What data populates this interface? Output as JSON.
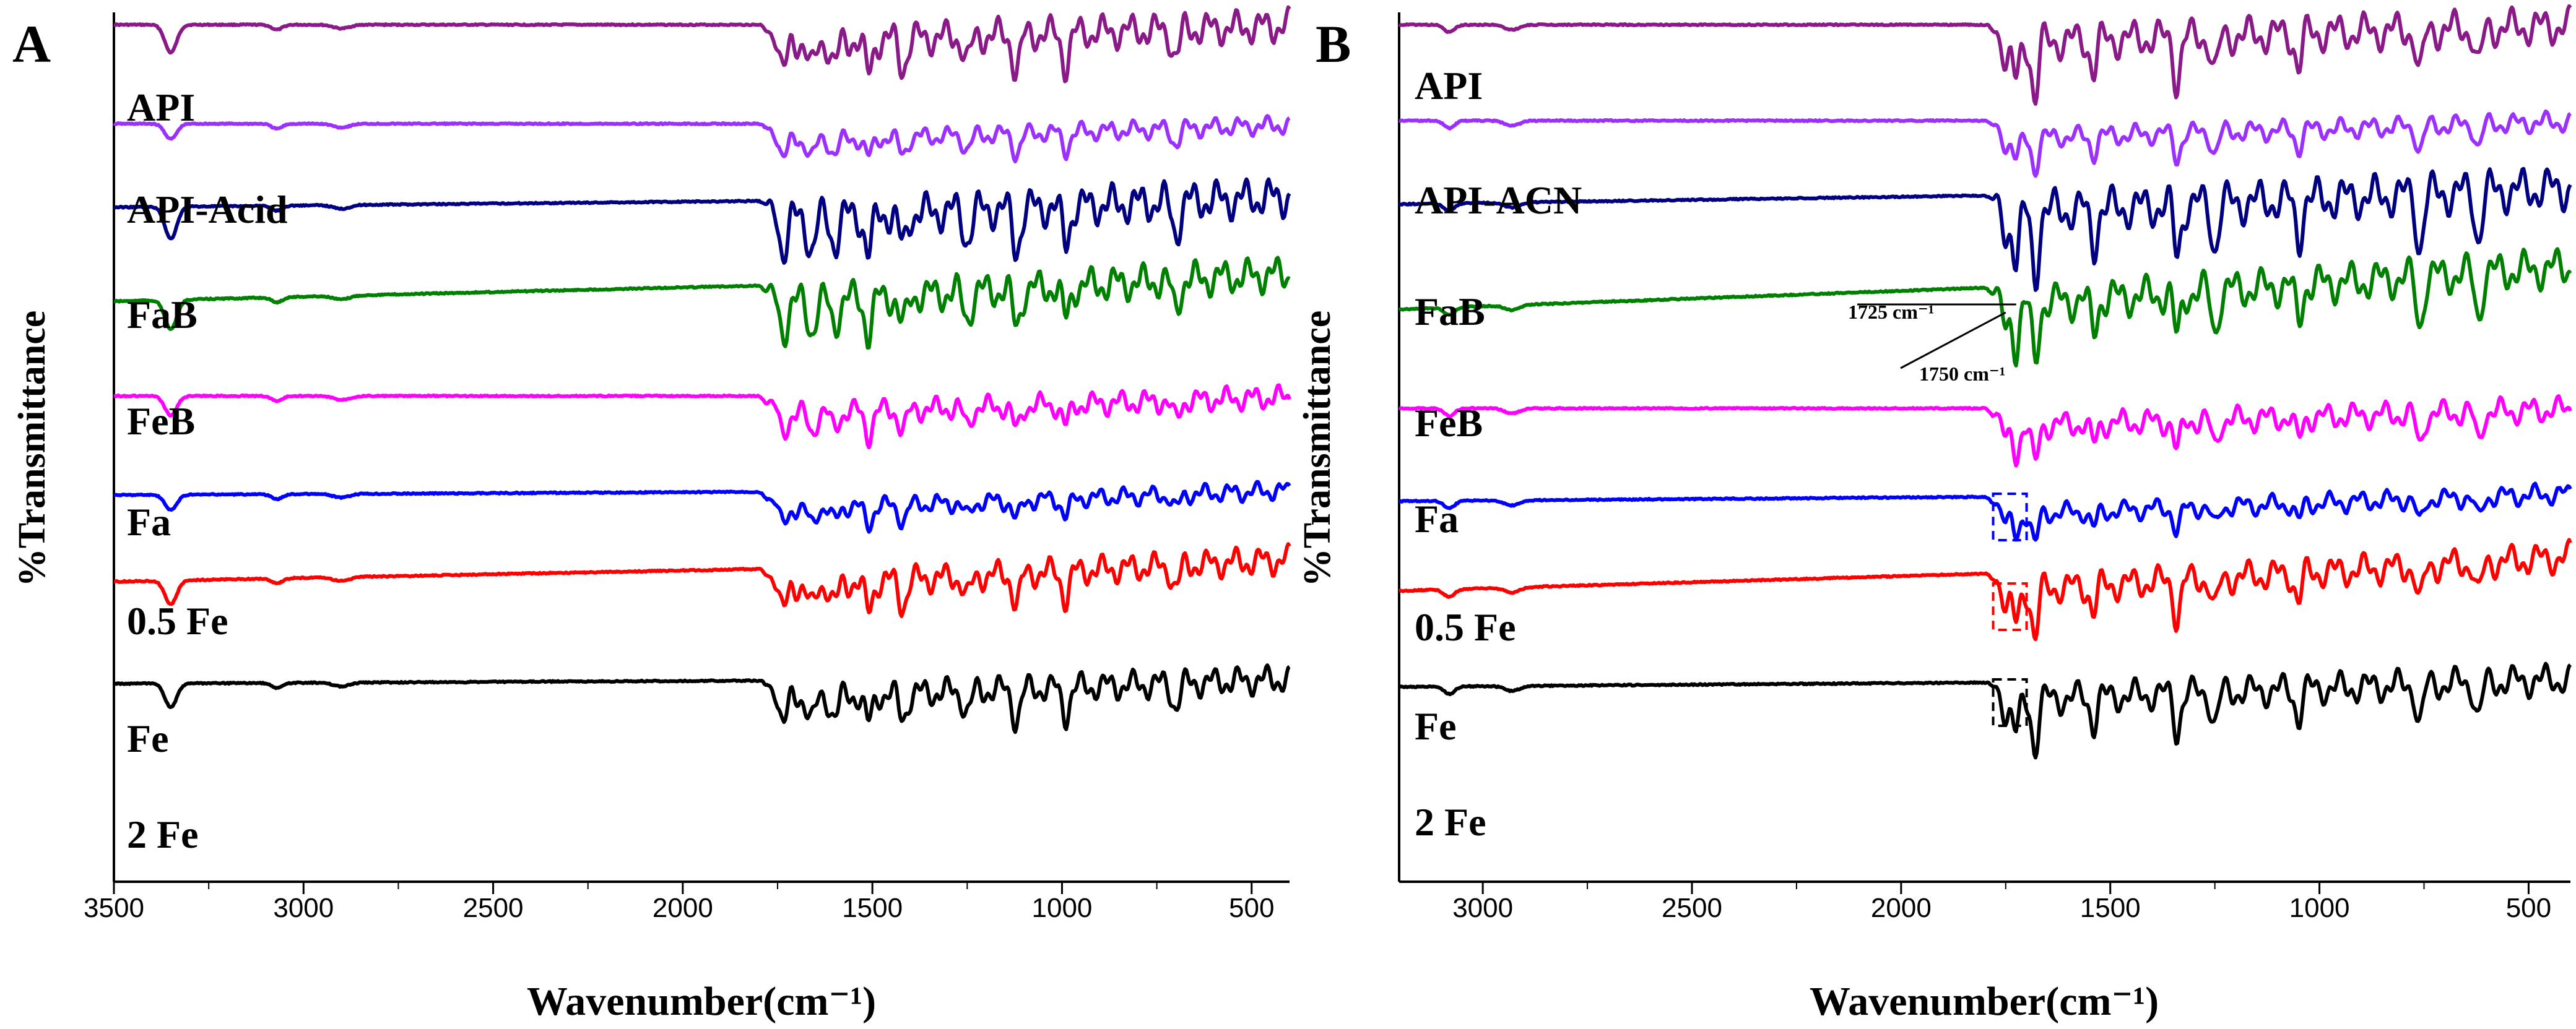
{
  "figure": {
    "ylabel": "%Transmittance"
  },
  "chart_data": [
    {
      "type": "line",
      "panel_label": "A",
      "xlabel": "Wavenumber(cm⁻¹)",
      "ylabel": "%Transmittance",
      "xlim": [
        3500,
        400
      ],
      "xticks": [
        "3500",
        "3000",
        "2500",
        "2000",
        "1500",
        "1000",
        "500"
      ],
      "tick_values": [
        3500,
        3000,
        2500,
        2000,
        1500,
        1000,
        500
      ],
      "series": [
        {
          "name": "API",
          "color": "#8b1a89",
          "baseline_wavenumber": 2500
        },
        {
          "name": "API-Acid",
          "color": "#9b30ff",
          "baseline_wavenumber": 2500
        },
        {
          "name": "FaB",
          "color": "#000080",
          "baseline_wavenumber": 2500
        },
        {
          "name": "FeB",
          "color": "#008000",
          "baseline_wavenumber": 2500
        },
        {
          "name": "Fa",
          "color": "#ff00ff",
          "baseline_wavenumber": 2500
        },
        {
          "name": "0.5 Fe",
          "color": "#0000ff",
          "baseline_wavenumber": 2500
        },
        {
          "name": "Fe",
          "color": "#ff0000",
          "baseline_wavenumber": 2500
        },
        {
          "name": "2 Fe",
          "color": "#000000",
          "baseline_wavenumber": 2500
        }
      ],
      "peaks_cm-1": [
        3350,
        1735,
        1660,
        1600,
        1510,
        1420,
        1250,
        1120,
        990,
        700
      ],
      "legend": "inline labels"
    },
    {
      "type": "line",
      "panel_label": "B",
      "xlabel": "Wavenumber(cm⁻¹)",
      "ylabel": "%Transmittance",
      "xlim": [
        3200,
        400
      ],
      "xticks": [
        "3000",
        "2500",
        "2000",
        "1500",
        "1000",
        "500"
      ],
      "tick_values": [
        3000,
        2500,
        2000,
        1500,
        1000,
        500
      ],
      "series": [
        {
          "name": "API",
          "color": "#8b1a89"
        },
        {
          "name": "API-ACN",
          "color": "#9b30ff"
        },
        {
          "name": "FaB",
          "color": "#000080"
        },
        {
          "name": "FeB",
          "color": "#008000"
        },
        {
          "name": "Fa",
          "color": "#ff00ff"
        },
        {
          "name": "0.5 Fe",
          "color": "#0000ff"
        },
        {
          "name": "Fe",
          "color": "#ff0000"
        },
        {
          "name": "2 Fe",
          "color": "#000000"
        }
      ],
      "peaks_cm-1": [
        1750,
        1725,
        1680,
        1540,
        1340,
        1250,
        1050,
        760,
        620
      ],
      "annotations": [
        {
          "text": "1725 cm⁻¹",
          "wavenumber": 1725
        },
        {
          "text": "1750 cm⁻¹",
          "wavenumber": 1750
        }
      ],
      "highlight_boxes": [
        {
          "series": "0.5 Fe",
          "color": "#0000ff",
          "range_cm-1": [
            1780,
            1700
          ]
        },
        {
          "series": "Fe",
          "color": "#ff0000",
          "range_cm-1": [
            1780,
            1700
          ]
        },
        {
          "series": "2 Fe",
          "color": "#000000",
          "range_cm-1": [
            1780,
            1700
          ]
        }
      ],
      "legend": "inline labels"
    }
  ]
}
